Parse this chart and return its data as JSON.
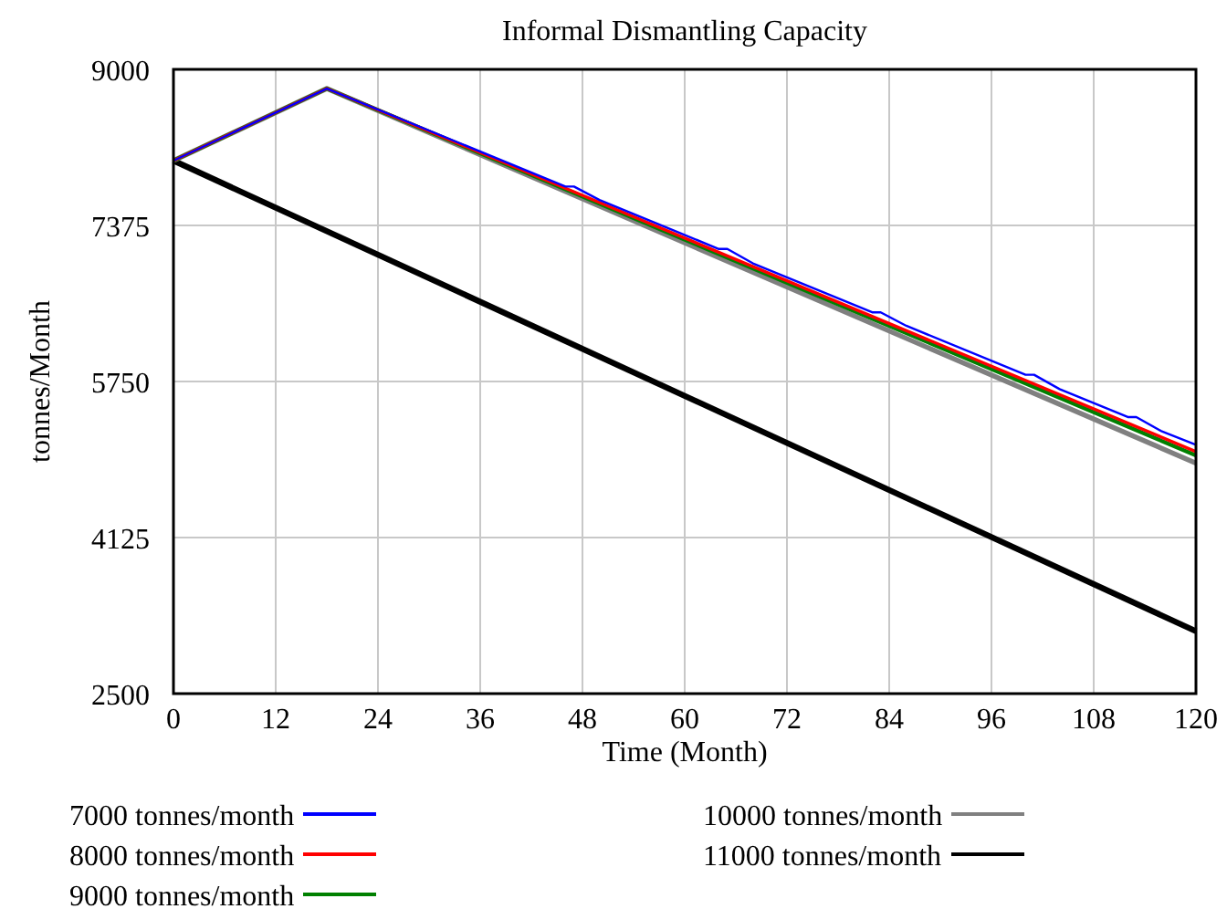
{
  "chart_data": {
    "type": "line",
    "title": "Informal Dismantling Capacity",
    "xlabel": "Time (Month)",
    "ylabel": "tonnes/Month",
    "xlim": [
      0,
      120
    ],
    "xticks": [
      0,
      12,
      24,
      36,
      48,
      60,
      72,
      84,
      96,
      108,
      120
    ],
    "ylim": [
      2500,
      9000
    ],
    "yticks": [
      2500,
      4125,
      5750,
      7375,
      9000
    ],
    "grid": true,
    "legend": "bottom",
    "series": [
      {
        "name": "7000 tonnes/month",
        "color": "#0000ff",
        "x": [
          0,
          18,
          46,
          47,
          50,
          64,
          65,
          68,
          82,
          83,
          86,
          100,
          101,
          104,
          112,
          113,
          116,
          120
        ],
        "values": [
          8050,
          8800,
          7780,
          7780,
          7640,
          7130,
          7130,
          6980,
          6470,
          6470,
          6330,
          5820,
          5820,
          5670,
          5380,
          5380,
          5230,
          5090
        ]
      },
      {
        "name": "8000 tonnes/month",
        "color": "#ff0000",
        "x": [
          0,
          18,
          120
        ],
        "values": [
          8050,
          8800,
          5020
        ]
      },
      {
        "name": "9000 tonnes/month",
        "color": "#008000",
        "x": [
          0,
          18,
          120
        ],
        "values": [
          8050,
          8800,
          4980
        ]
      },
      {
        "name": "10000 tonnes/month",
        "color": "#808080",
        "x": [
          0,
          18,
          120
        ],
        "values": [
          8050,
          8800,
          4900
        ]
      },
      {
        "name": "11000 tonnes/month",
        "color": "#000000",
        "x": [
          0,
          120
        ],
        "values": [
          8050,
          3150
        ]
      }
    ]
  }
}
